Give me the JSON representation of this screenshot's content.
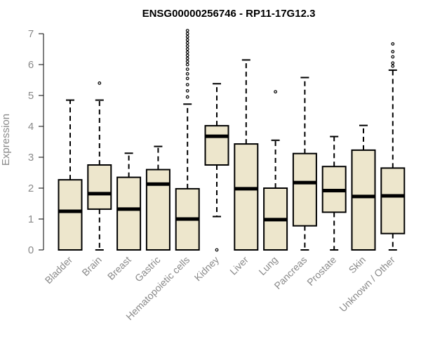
{
  "chart_data": {
    "type": "boxplot",
    "title": "ENSG00000256746 - RP11-17G12.3",
    "xlabel": "",
    "ylabel": "Expression",
    "ylim": [
      0,
      7
    ],
    "yticks": [
      0,
      1,
      2,
      3,
      4,
      5,
      6,
      7
    ],
    "colors": {
      "box_fill": "#ede6cc",
      "stroke": "#000000",
      "axis_text": "#8a8a8a"
    },
    "categories": [
      "Bladder",
      "Brain",
      "Breast",
      "Gastric",
      "Hematopoietic cells",
      "Kidney",
      "Liver",
      "Lung",
      "Pancreas",
      "Prostate",
      "Skin",
      "Unknown / Other"
    ],
    "boxes": [
      {
        "name": "Bladder",
        "min": 0,
        "q1": 0,
        "median": 1.25,
        "q3": 2.27,
        "max": 4.85,
        "outliers": []
      },
      {
        "name": "Brain",
        "min": 0,
        "q1": 1.32,
        "median": 1.82,
        "q3": 2.75,
        "max": 4.85,
        "outliers": [
          5.4
        ]
      },
      {
        "name": "Breast",
        "min": 0,
        "q1": 0,
        "median": 1.32,
        "q3": 2.35,
        "max": 3.13,
        "outliers": []
      },
      {
        "name": "Gastric",
        "min": 0,
        "q1": 0,
        "median": 2.13,
        "q3": 2.6,
        "max": 3.35,
        "outliers": []
      },
      {
        "name": "Hematopoietic cells",
        "min": 0,
        "q1": 0,
        "median": 1.0,
        "q3": 1.98,
        "max": 4.72,
        "outliers": [
          4.95,
          5.15,
          5.35,
          5.55,
          5.7,
          5.85,
          6.0,
          6.1,
          6.2,
          6.3,
          6.4,
          6.5,
          6.6,
          6.7,
          6.8,
          6.9,
          7.0,
          7.1
        ]
      },
      {
        "name": "Kidney",
        "min": 1.08,
        "q1": 2.75,
        "median": 3.68,
        "q3": 4.02,
        "max": 5.38,
        "outliers": [
          0
        ]
      },
      {
        "name": "Liver",
        "min": 0,
        "q1": 0,
        "median": 1.98,
        "q3": 3.43,
        "max": 6.15,
        "outliers": []
      },
      {
        "name": "Lung",
        "min": 0,
        "q1": 0,
        "median": 0.98,
        "q3": 2.0,
        "max": 3.55,
        "outliers": [
          5.12
        ]
      },
      {
        "name": "Pancreas",
        "min": 0,
        "q1": 0.78,
        "median": 2.18,
        "q3": 3.12,
        "max": 5.58,
        "outliers": []
      },
      {
        "name": "Prostate",
        "min": 0,
        "q1": 1.22,
        "median": 1.92,
        "q3": 2.7,
        "max": 3.67,
        "outliers": []
      },
      {
        "name": "Skin",
        "min": 0,
        "q1": 0,
        "median": 1.73,
        "q3": 3.23,
        "max": 4.03,
        "outliers": []
      },
      {
        "name": "Unknown / Other",
        "min": 0,
        "q1": 0.53,
        "median": 1.75,
        "q3": 2.65,
        "max": 5.82,
        "outliers": [
          5.95,
          6.05,
          6.25,
          6.42,
          6.67
        ]
      }
    ]
  }
}
